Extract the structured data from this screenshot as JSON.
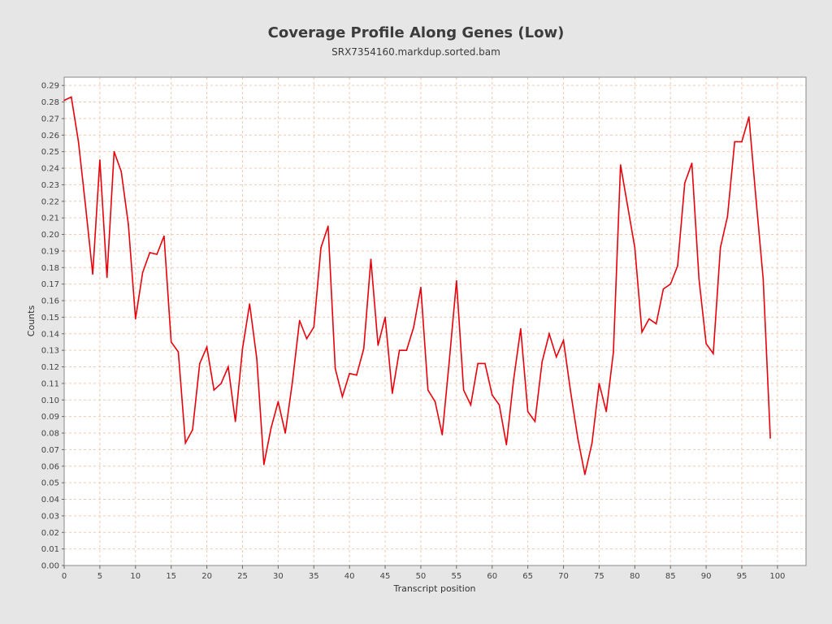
{
  "chart_data": {
    "type": "line",
    "title": "Coverage Profile Along Genes (Low)",
    "subtitle": "SRX7354160.markdup.sorted.bam",
    "xlabel": "Transcript position",
    "ylabel": "Counts",
    "xlim": [
      0,
      104
    ],
    "ylim": [
      0,
      0.295
    ],
    "x_ticks": [
      0,
      5,
      10,
      15,
      20,
      25,
      30,
      35,
      40,
      45,
      50,
      55,
      60,
      65,
      70,
      75,
      80,
      85,
      90,
      95,
      100
    ],
    "y_ticks": [
      "0.00",
      "0.01",
      "0.02",
      "0.03",
      "0.04",
      "0.05",
      "0.06",
      "0.07",
      "0.08",
      "0.09",
      "0.10",
      "0.11",
      "0.12",
      "0.13",
      "0.14",
      "0.15",
      "0.16",
      "0.17",
      "0.18",
      "0.19",
      "0.20",
      "0.21",
      "0.22",
      "0.23",
      "0.24",
      "0.25",
      "0.26",
      "0.27",
      "0.28",
      "0.29"
    ],
    "grid": true,
    "series": [
      {
        "color": "#e8000b",
        "x": [
          0,
          1,
          2,
          3,
          4,
          5,
          6,
          7,
          8,
          9,
          10,
          11,
          12,
          13,
          14,
          15,
          16,
          17,
          18,
          19,
          20,
          21,
          22,
          23,
          24,
          25,
          26,
          27,
          28,
          29,
          30,
          31,
          32,
          33,
          34,
          35,
          36,
          37,
          38,
          39,
          40,
          41,
          42,
          43,
          44,
          45,
          46,
          47,
          48,
          49,
          50,
          51,
          52,
          53,
          54,
          55,
          56,
          57,
          58,
          59,
          60,
          61,
          62,
          63,
          64,
          65,
          66,
          67,
          68,
          69,
          70,
          71,
          72,
          73,
          74,
          75,
          76,
          77,
          78,
          79,
          80,
          81,
          82,
          83,
          84,
          85,
          86,
          87,
          88,
          89,
          90,
          91,
          92,
          93,
          94,
          95,
          96,
          97,
          98,
          99
        ],
        "values": [
          0.281,
          0.283,
          0.256,
          0.217,
          0.176,
          0.245,
          0.174,
          0.25,
          0.238,
          0.206,
          0.149,
          0.177,
          0.189,
          0.188,
          0.199,
          0.135,
          0.129,
          0.074,
          0.082,
          0.122,
          0.132,
          0.106,
          0.11,
          0.12,
          0.087,
          0.131,
          0.158,
          0.125,
          0.061,
          0.083,
          0.099,
          0.08,
          0.111,
          0.148,
          0.137,
          0.144,
          0.192,
          0.205,
          0.119,
          0.102,
          0.116,
          0.115,
          0.131,
          0.185,
          0.133,
          0.15,
          0.104,
          0.13,
          0.13,
          0.144,
          0.168,
          0.106,
          0.099,
          0.079,
          0.124,
          0.172,
          0.106,
          0.097,
          0.122,
          0.122,
          0.103,
          0.097,
          0.073,
          0.112,
          0.143,
          0.093,
          0.087,
          0.123,
          0.14,
          0.126,
          0.136,
          0.105,
          0.077,
          0.055,
          0.074,
          0.11,
          0.093,
          0.129,
          0.242,
          0.217,
          0.192,
          0.141,
          0.149,
          0.146,
          0.167,
          0.17,
          0.181,
          0.231,
          0.243,
          0.173,
          0.134,
          0.128,
          0.192,
          0.211,
          0.256,
          0.256,
          0.271,
          0.221,
          0.173,
          0.077
        ]
      }
    ]
  }
}
